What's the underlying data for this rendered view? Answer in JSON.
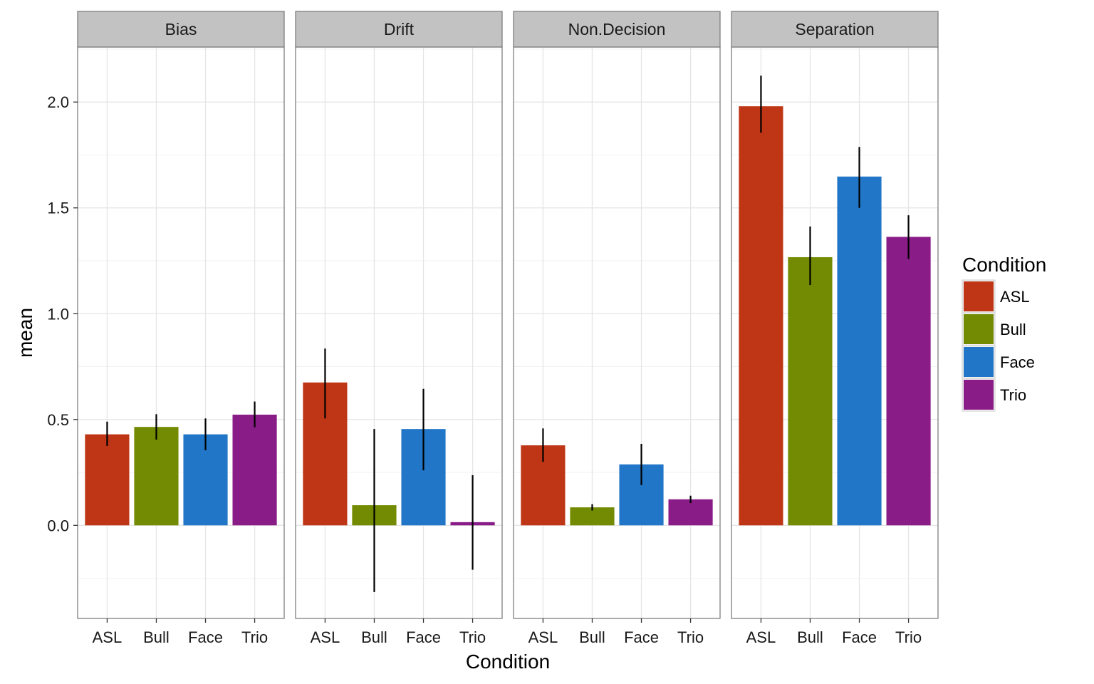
{
  "chart_data": {
    "type": "bar",
    "xlabel": "Condition",
    "ylabel": "mean",
    "ylim": [
      -0.44,
      2.26
    ],
    "yticks": [
      "0.0",
      "0.5",
      "1.0",
      "1.5",
      "2.0"
    ],
    "ytick_values": [
      0,
      0.5,
      1.0,
      1.5,
      2.0
    ],
    "grid": true,
    "categories": [
      "ASL",
      "Bull",
      "Face",
      "Trio"
    ],
    "colors": {
      "ASL": "#BE3616",
      "Bull": "#738A03",
      "Face": "#2176C7",
      "Trio": "#8A1C88"
    },
    "legend": {
      "title": "Condition",
      "position": "right",
      "items": [
        "ASL",
        "Bull",
        "Face",
        "Trio"
      ]
    },
    "facets": [
      {
        "name": "Bias",
        "values": [
          0.43,
          0.465,
          0.43,
          0.523
        ],
        "error_low": [
          0.375,
          0.405,
          0.355,
          0.463
        ],
        "error_high": [
          0.49,
          0.525,
          0.505,
          0.585
        ]
      },
      {
        "name": "Drift",
        "values": [
          0.675,
          0.095,
          0.455,
          0.015
        ],
        "error_low": [
          0.505,
          -0.315,
          0.26,
          -0.21
        ],
        "error_high": [
          0.835,
          0.455,
          0.645,
          0.237
        ]
      },
      {
        "name": "Non.Decision",
        "values": [
          0.378,
          0.085,
          0.288,
          0.123
        ],
        "error_low": [
          0.3,
          0.07,
          0.19,
          0.105
        ],
        "error_high": [
          0.458,
          0.1,
          0.385,
          0.14
        ]
      },
      {
        "name": "Separation",
        "values": [
          1.98,
          1.267,
          1.648,
          1.363
        ],
        "error_low": [
          1.855,
          1.135,
          1.5,
          1.258
        ],
        "error_high": [
          2.125,
          1.412,
          1.788,
          1.465
        ]
      }
    ]
  }
}
